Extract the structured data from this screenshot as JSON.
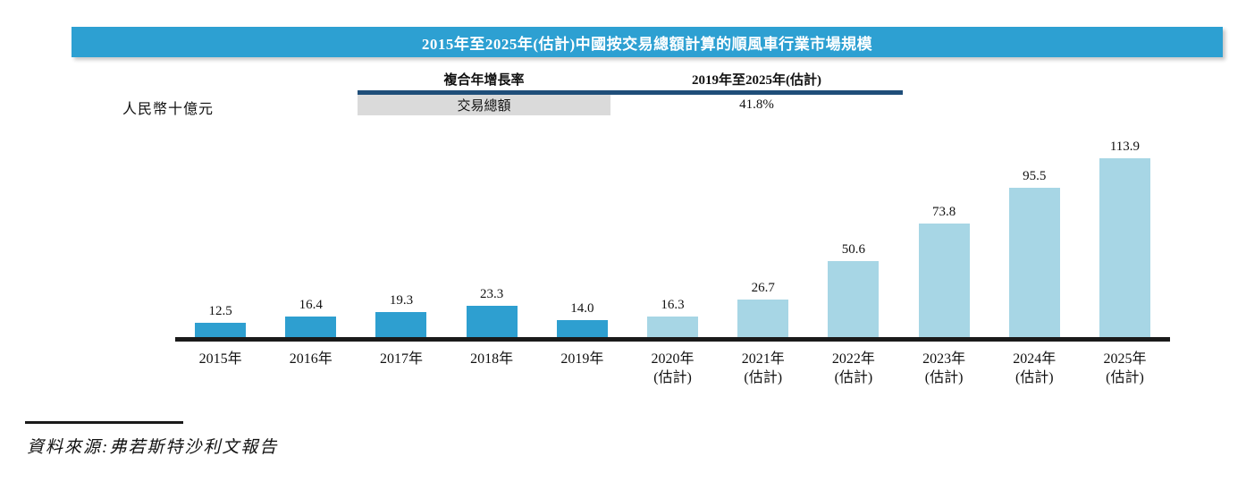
{
  "title_bar": {
    "text": "2015年至2025年(估計)中國按交易總額計算的順風車行業市場規模"
  },
  "unit_label": "人民幣十億元",
  "summary_table": {
    "col1_header": "複合年增長率",
    "col2_header": "2019年至2025年(估計)",
    "row_label": "交易總額",
    "cagr_value": "41.8%"
  },
  "chart_data": {
    "type": "bar",
    "title": "2015年至2025年(估計)中國按交易總額計算的順風車行業市場規模",
    "ylabel": "人民幣十億元",
    "xlabel": "",
    "ylim": [
      0,
      120
    ],
    "grid": false,
    "legend": "none",
    "series_name": "交易總額",
    "cagr_2019_2025e": "41.8%",
    "categories": [
      [
        "2015年"
      ],
      [
        "2016年"
      ],
      [
        "2017年"
      ],
      [
        "2018年"
      ],
      [
        "2019年"
      ],
      [
        "2020年",
        "(估計)"
      ],
      [
        "2021年",
        "(估計)"
      ],
      [
        "2022年",
        "(估計)"
      ],
      [
        "2023年",
        "(估計)"
      ],
      [
        "2024年",
        "(估計)"
      ],
      [
        "2025年",
        "(估計)"
      ]
    ],
    "values": [
      12.5,
      16.4,
      19.3,
      23.3,
      14.0,
      16.3,
      26.7,
      50.6,
      73.8,
      95.5,
      113.9
    ],
    "labels": [
      "12.5",
      "16.4",
      "19.3",
      "23.3",
      "14.0",
      "16.3",
      "26.7",
      "50.6",
      "73.8",
      "95.5",
      "113.9"
    ],
    "estimate_flags": [
      false,
      false,
      false,
      false,
      false,
      true,
      true,
      true,
      true,
      true,
      true
    ],
    "colors": {
      "actual": "#2e9fd0",
      "estimate": "#a7d6e5",
      "title_bg": "#2da0d2",
      "divider_navy": "#1f4e79",
      "axis": "#1a1a1a",
      "cell_gray": "#dadada"
    }
  },
  "source": {
    "text": "資料來源:弗若斯特沙利文報告"
  }
}
